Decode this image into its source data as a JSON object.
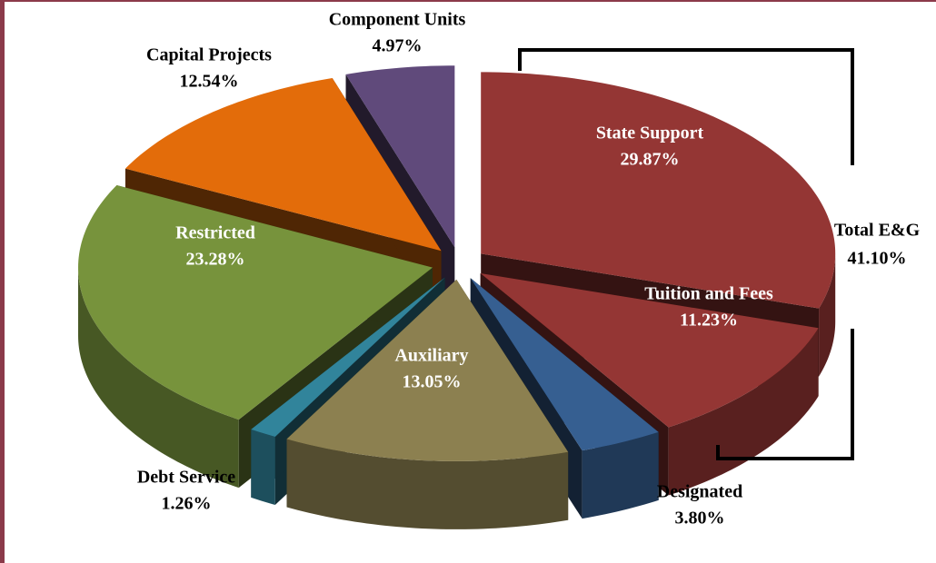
{
  "chart_data": {
    "type": "pie3d",
    "categories": [
      "State Support",
      "Tuition and Fees",
      "Designated",
      "Auxiliary",
      "Debt Service",
      "Restricted",
      "Capital Projects",
      "Component Units"
    ],
    "values": [
      29.87,
      11.23,
      3.8,
      13.05,
      1.26,
      23.28,
      12.54,
      4.97
    ],
    "value_labels": [
      "29.87%",
      "11.23%",
      "3.80%",
      "13.05%",
      "1.26%",
      "23.28%",
      "12.54%",
      "4.97%"
    ],
    "colors": [
      "#943634",
      "#943634",
      "#365f91",
      "#8c8050",
      "#31849b",
      "#77933c",
      "#e36c0a",
      "#604a7b"
    ],
    "annotation": {
      "label": "Total E&G",
      "value": 41.1,
      "value_label": "41.10%"
    }
  }
}
